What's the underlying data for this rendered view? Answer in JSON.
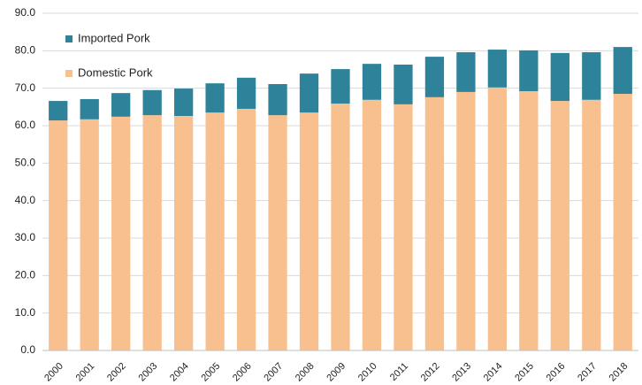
{
  "chart_data": {
    "type": "stacked_bar",
    "categories": [
      "2000",
      "2001",
      "2002",
      "2003",
      "2004",
      "2005",
      "2006",
      "2007",
      "2008",
      "2009",
      "2010",
      "2011",
      "2012",
      "2013",
      "2014",
      "2015",
      "2016",
      "2017",
      "2018"
    ],
    "series": [
      {
        "name": "Domestic Pork",
        "color": "#f9c08f",
        "values": [
          61.4,
          61.7,
          62.4,
          62.8,
          62.6,
          63.5,
          64.5,
          62.8,
          63.5,
          65.9,
          66.9,
          65.7,
          67.6,
          69.0,
          70.2,
          69.2,
          66.6,
          66.9,
          68.5
        ]
      },
      {
        "name": "Imported Pork",
        "color": "#2e8299",
        "values": [
          5.2,
          5.4,
          6.3,
          6.7,
          7.3,
          7.8,
          8.3,
          8.3,
          10.4,
          9.2,
          9.6,
          10.6,
          10.8,
          10.6,
          10.1,
          10.9,
          12.8,
          12.7,
          12.5
        ]
      }
    ],
    "ylim": [
      0,
      90
    ],
    "yticks": [
      {
        "value": 0,
        "label": "0.0"
      },
      {
        "value": 10,
        "label": "10.0"
      },
      {
        "value": 20,
        "label": "20.0"
      },
      {
        "value": 30,
        "label": "30.0"
      },
      {
        "value": 40,
        "label": "40.0"
      },
      {
        "value": 50,
        "label": "50.0"
      },
      {
        "value": 60,
        "label": "60.0"
      },
      {
        "value": 70,
        "label": "70.0"
      },
      {
        "value": 80,
        "label": "80.0"
      },
      {
        "value": 90,
        "label": "90.0"
      }
    ],
    "grid": true,
    "legend": "upper-left"
  }
}
